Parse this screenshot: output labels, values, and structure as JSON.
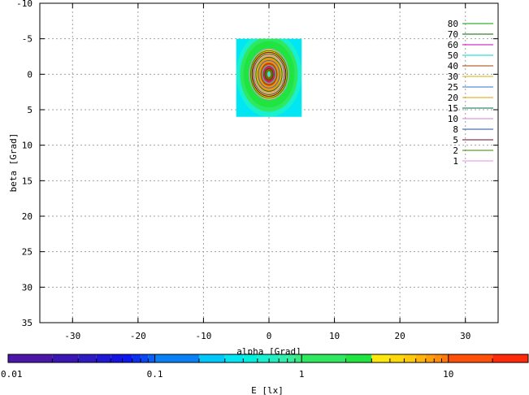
{
  "chart_data": {
    "type": "heatmap",
    "title": "",
    "xlabel": "alpha [Grad]",
    "ylabel": "beta [Grad]",
    "xlim": [
      -35,
      35
    ],
    "ylim": [
      35,
      -10
    ],
    "y_axis_inverted": true,
    "grid": true,
    "x_ticks": [
      -30,
      -20,
      -10,
      0,
      10,
      20,
      30
    ],
    "y_ticks": [
      -10,
      -5,
      0,
      5,
      10,
      15,
      20,
      25,
      30,
      35
    ],
    "colorbar": {
      "label": "E [lx]",
      "scale": "log",
      "range": [
        0.01,
        35
      ],
      "tick_labels": [
        "0.01",
        "0.1",
        "1",
        "10"
      ],
      "tick_values": [
        0.01,
        0.1,
        1,
        10
      ],
      "level_edges": [
        0.01,
        0.02,
        0.03,
        0.04,
        0.05,
        0.06,
        0.07,
        0.08,
        0.09,
        0.1,
        0.2,
        0.3,
        0.4,
        0.5,
        0.6,
        0.7,
        0.8,
        0.9,
        1,
        2,
        3,
        4,
        5,
        6,
        7,
        8,
        9,
        10,
        20,
        35
      ],
      "colors": [
        "#4b17a8",
        "#3a17b4",
        "#2f1bc4",
        "#1f18d6",
        "#1614e2",
        "#0d18f0",
        "#0a30f3",
        "#0a48f4",
        "#0a60f5",
        "#0a80f5",
        "#00c8f8",
        "#00e6f2",
        "#00f0e0",
        "#18f0d0",
        "#20eec0",
        "#30eeb0",
        "#38ec9e",
        "#3aea80",
        "#30e860",
        "#20e440",
        "#fce80a",
        "#ffd80a",
        "#ffc80a",
        "#ffb40a",
        "#ffa00a",
        "#ff8c0a",
        "#ff780a",
        "#ff500a",
        "#ff2a0a"
      ]
    },
    "field_extent": {
      "alpha": [
        -5,
        5
      ],
      "beta": [
        -5,
        6
      ]
    },
    "contour_levels": [
      {
        "label": "80",
        "value": 80,
        "color": "#00a000"
      },
      {
        "label": "70",
        "value": 70,
        "color": "#006400"
      },
      {
        "label": "60",
        "value": 60,
        "color": "#c000c0"
      },
      {
        "label": "50",
        "value": 50,
        "color": "#00d0d0"
      },
      {
        "label": "40",
        "value": 40,
        "color": "#a04000"
      },
      {
        "label": "30",
        "value": 30,
        "color": "#d0b000"
      },
      {
        "label": "25",
        "value": 25,
        "color": "#3070d0"
      },
      {
        "label": "20",
        "value": 20,
        "color": "#e0a000"
      },
      {
        "label": "15",
        "value": 15,
        "color": "#00704a"
      },
      {
        "label": "10",
        "value": 10,
        "color": "#d080d0"
      },
      {
        "label": "8",
        "value": 8,
        "color": "#2050a0"
      },
      {
        "label": "5",
        "value": 5,
        "color": "#700020"
      },
      {
        "label": "2",
        "value": 2,
        "color": "#408000"
      },
      {
        "label": "1",
        "value": 1,
        "color": "#e090e0"
      }
    ],
    "illuminance_field": [
      {
        "rx": 1.0,
        "ry": 1.0,
        "value": 0.5
      },
      {
        "rx": 0.88,
        "ry": 0.88,
        "value": 1.5
      },
      {
        "rx": 0.78,
        "ry": 0.78,
        "value": 2.5
      },
      {
        "rx": 0.55,
        "ry": 0.58,
        "value": 4
      },
      {
        "rx": 0.36,
        "ry": 0.42,
        "value": 8
      },
      {
        "rx": 0.24,
        "ry": 0.3,
        "value": 15
      },
      {
        "rx": 0.14,
        "ry": 0.2,
        "value": 30
      },
      {
        "rx": 0.05,
        "ry": 0.07,
        "value": 0.5
      }
    ]
  }
}
